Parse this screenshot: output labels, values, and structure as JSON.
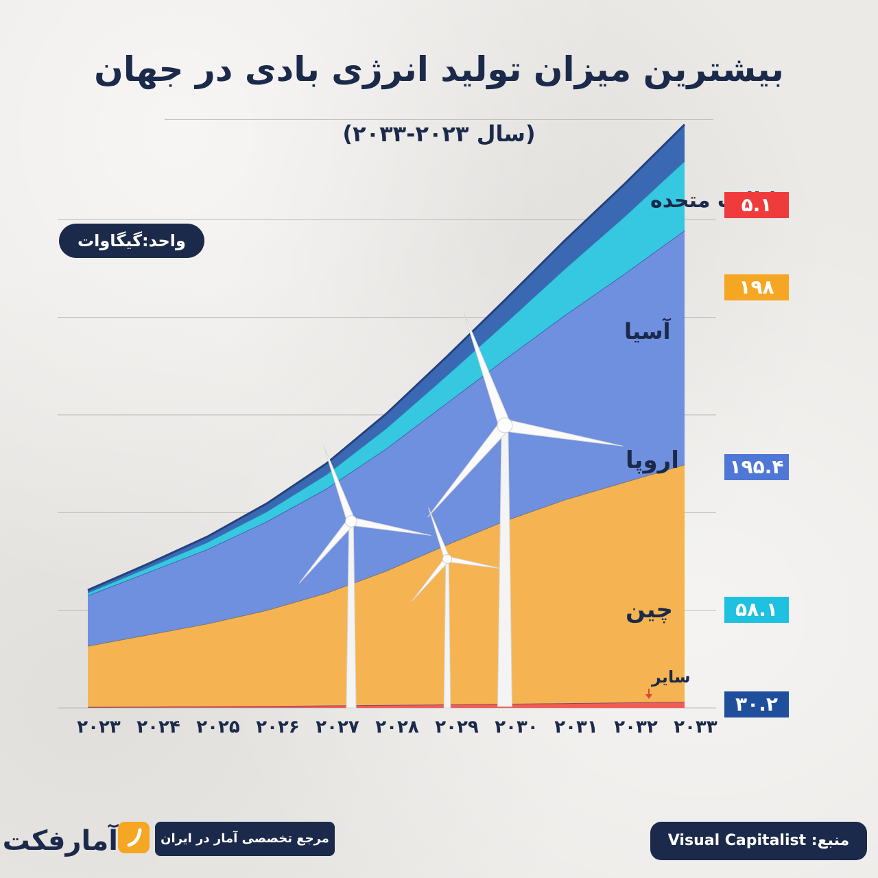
{
  "title": "بیشترین میزان تولید انرژی بادی در جهان",
  "subtitle": "(سال ۲۰۲۳-۲۰۳۳)",
  "unit_label": "واحد:گیگاوات",
  "source": "منبع: Visual Capitalist",
  "tagline": "مرجع تخصصی آمار در ایران",
  "logo_text": "آمارفکت",
  "chart_data": {
    "type": "area",
    "stacked": true,
    "x": [
      "۲۰۲۳",
      "۲۰۲۴",
      "۲۰۲۵",
      "۲۰۲۶",
      "۲۰۲۷",
      "۲۰۲۸",
      "۲۰۲۹",
      "۲۰۳۰",
      "۲۰۳۱",
      "۲۰۳۲",
      "۲۰۳۳"
    ],
    "series": [
      {
        "name": "سایر",
        "color": "#f25c54",
        "values": [
          0.8,
          1.0,
          1.3,
          1.6,
          2.0,
          2.4,
          2.9,
          3.4,
          3.9,
          4.5,
          5.1
        ]
      },
      {
        "name": "چین",
        "color": "#f5b451",
        "values": [
          51,
          60,
          69,
          80,
          94,
          112,
          133,
          153,
          170,
          184,
          198
        ]
      },
      {
        "name": "اروپا",
        "color": "#6f8fdf",
        "values": [
          42,
          52,
          62,
          74,
          87,
          102,
          118,
          135,
          154,
          174,
          195.4
        ]
      },
      {
        "name": "آسیا",
        "color": "#35c8e0",
        "values": [
          2.5,
          4,
          6,
          8.5,
          12,
          17,
          23,
          30,
          39,
          48,
          58.1
        ]
      },
      {
        "name": "ایالات متحده",
        "color": "#3a68b3",
        "values": [
          2,
          3,
          4.5,
          6.5,
          9,
          12,
          15.5,
          19.5,
          23.5,
          27,
          30.2
        ]
      }
    ],
    "end_labels": [
      {
        "series": "ایالات متحده",
        "text": "۳۰.۲",
        "color": "#1f4e9c"
      },
      {
        "series": "آسیا",
        "text": "۵۸.۱",
        "color": "#1ec1df"
      },
      {
        "series": "اروپا",
        "text": "۱۹۵.۴",
        "color": "#4f78d6"
      },
      {
        "series": "چین",
        "text": "۱۹۸",
        "color": "#f5a623"
      },
      {
        "series": "سایر",
        "text": "۵.۱",
        "color": "#ef3b3b"
      }
    ],
    "ylim": [
      0,
      490
    ],
    "grid": true,
    "xlabel": "",
    "ylabel": ""
  }
}
